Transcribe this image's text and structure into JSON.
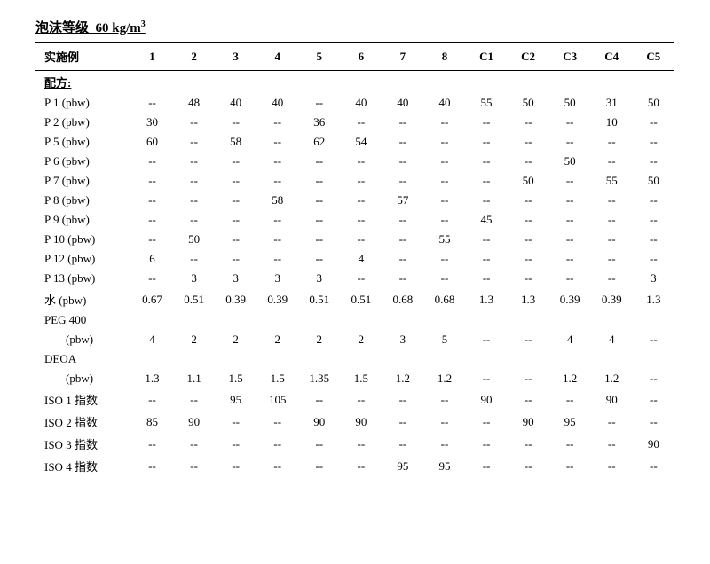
{
  "title_prefix": "泡沫等级",
  "title_value": "60 kg/m",
  "title_sup": "3",
  "header_label": "实施例",
  "columns": [
    "1",
    "2",
    "3",
    "4",
    "5",
    "6",
    "7",
    "8",
    "C1",
    "C2",
    "C3",
    "C4",
    "C5"
  ],
  "section_label": "配方:",
  "rows": [
    {
      "label": "P 1 (pbw)",
      "cells": [
        "--",
        "48",
        "40",
        "40",
        "--",
        "40",
        "40",
        "40",
        "55",
        "50",
        "50",
        "31",
        "50"
      ]
    },
    {
      "label": "P 2 (pbw)",
      "cells": [
        "30",
        "--",
        "--",
        "--",
        "36",
        "--",
        "--",
        "--",
        "--",
        "--",
        "--",
        "10",
        "--"
      ]
    },
    {
      "label": "P 5 (pbw)",
      "cells": [
        "60",
        "--",
        "58",
        "--",
        "62",
        "54",
        "--",
        "--",
        "--",
        "--",
        "--",
        "--",
        "--"
      ]
    },
    {
      "label": "P 6 (pbw)",
      "cells": [
        "--",
        "--",
        "--",
        "--",
        "--",
        "--",
        "--",
        "--",
        "--",
        "--",
        "50",
        "--",
        "--"
      ]
    },
    {
      "label": "P 7 (pbw)",
      "cells": [
        "--",
        "--",
        "--",
        "--",
        "--",
        "--",
        "--",
        "--",
        "--",
        "50",
        "--",
        "55",
        "50"
      ]
    },
    {
      "label": "P 8 (pbw)",
      "cells": [
        "--",
        "--",
        "--",
        "58",
        "--",
        "--",
        "57",
        "--",
        "--",
        "--",
        "--",
        "--",
        "--"
      ]
    },
    {
      "label": "P 9 (pbw)",
      "cells": [
        "--",
        "--",
        "--",
        "--",
        "--",
        "--",
        "--",
        "--",
        "45",
        "--",
        "--",
        "--",
        "--"
      ]
    },
    {
      "label": "P 10 (pbw)",
      "cells": [
        "--",
        "50",
        "--",
        "--",
        "--",
        "--",
        "--",
        "55",
        "--",
        "--",
        "--",
        "--",
        "--"
      ]
    },
    {
      "label": "P 12 (pbw)",
      "cells": [
        "6",
        "--",
        "--",
        "--",
        "--",
        "4",
        "--",
        "--",
        "--",
        "--",
        "--",
        "--",
        "--"
      ]
    },
    {
      "label": "P 13 (pbw)",
      "cells": [
        "--",
        "3",
        "3",
        "3",
        "3",
        "--",
        "--",
        "--",
        "--",
        "--",
        "--",
        "--",
        "3"
      ]
    },
    {
      "label": "水 (pbw)",
      "cells": [
        "0.67",
        "0.51",
        "0.39",
        "0.39",
        "0.51",
        "0.51",
        "0.68",
        "0.68",
        "1.3",
        "1.3",
        "0.39",
        "0.39",
        "1.3"
      ]
    }
  ],
  "two_line_rows": [
    {
      "label_top": "PEG 400",
      "label_bottom": "(pbw)",
      "cells": [
        "4",
        "2",
        "2",
        "2",
        "2",
        "2",
        "3",
        "5",
        "--",
        "--",
        "4",
        "4",
        "--"
      ]
    },
    {
      "label_top": "DEOA",
      "label_bottom": "(pbw)",
      "cells": [
        "1.3",
        "1.1",
        "1.5",
        "1.5",
        "1.35",
        "1.5",
        "1.2",
        "1.2",
        "--",
        "--",
        "1.2",
        "1.2",
        "--"
      ]
    }
  ],
  "iso_rows": [
    {
      "label": "ISO 1 指数",
      "cells": [
        "--",
        "--",
        "95",
        "105",
        "--",
        "--",
        "--",
        "--",
        "90",
        "--",
        "--",
        "90",
        "--"
      ]
    },
    {
      "label": "ISO 2 指数",
      "cells": [
        "85",
        "90",
        "--",
        "--",
        "90",
        "90",
        "--",
        "--",
        "--",
        "90",
        "95",
        "--",
        "--"
      ]
    },
    {
      "label": "ISO 3 指数",
      "cells": [
        "--",
        "--",
        "--",
        "--",
        "--",
        "--",
        "--",
        "--",
        "--",
        "--",
        "--",
        "--",
        "90"
      ]
    },
    {
      "label": "ISO 4 指数",
      "cells": [
        "--",
        "--",
        "--",
        "--",
        "--",
        "--",
        "95",
        "95",
        "--",
        "--",
        "--",
        "--",
        "--"
      ]
    }
  ],
  "style": {
    "background": "#ffffff",
    "text_color": "#000000",
    "border_color": "#000000",
    "font_size_body": 13,
    "font_size_title": 15
  }
}
